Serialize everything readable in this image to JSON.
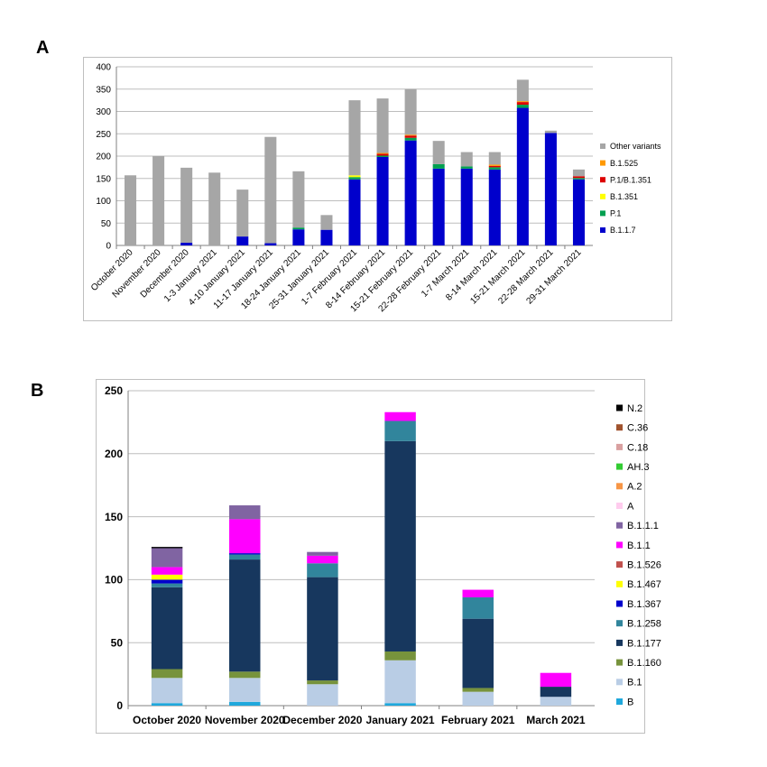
{
  "panels": {
    "a": "A",
    "b": "B"
  },
  "chart_data": [
    {
      "type": "bar",
      "stacked": true,
      "categories": [
        "October 2020",
        "November 2020",
        "December 2020",
        "1-3 January 2021",
        "4-10 January 2021",
        "11-17 January 2021",
        "18-24 January 2021",
        "25-31 January 2021",
        "1-7 February 2021",
        "8-14 February 2021",
        "15-21 February 2021",
        "22-28 February 2021",
        "1-7 March 2021",
        "8-14 March 2021",
        "15-21 March 2021",
        "22-28 March 2021",
        "29-31 March 2021"
      ],
      "ylim": [
        0,
        400
      ],
      "yticks": [
        0,
        50,
        100,
        150,
        200,
        250,
        300,
        350,
        400
      ],
      "grid": true,
      "legend_position": "right",
      "series": [
        {
          "name": "B.1.1.7",
          "color": "#0000cc",
          "values": [
            0,
            0,
            6,
            0,
            20,
            5,
            36,
            35,
            148,
            198,
            235,
            172,
            172,
            170,
            308,
            252,
            148
          ]
        },
        {
          "name": "P.1",
          "color": "#00a050",
          "values": [
            0,
            0,
            0,
            0,
            0,
            0,
            4,
            0,
            5,
            3,
            6,
            10,
            5,
            5,
            7,
            0,
            3
          ]
        },
        {
          "name": "B.1.351",
          "color": "#ffff00",
          "values": [
            0,
            0,
            0,
            0,
            0,
            0,
            0,
            0,
            4,
            0,
            0,
            0,
            0,
            0,
            0,
            0,
            0
          ]
        },
        {
          "name": "P.1/B.1.351",
          "color": "#dd0000",
          "values": [
            0,
            0,
            0,
            0,
            0,
            0,
            0,
            0,
            0,
            4,
            5,
            0,
            0,
            3,
            6,
            0,
            4
          ]
        },
        {
          "name": "B.1.525",
          "color": "#ff9900",
          "values": [
            0,
            0,
            0,
            0,
            0,
            0,
            0,
            0,
            0,
            2,
            2,
            0,
            0,
            3,
            2,
            0,
            0
          ]
        },
        {
          "name": "Other variants",
          "color": "#a6a6a6",
          "values": [
            157,
            200,
            168,
            163,
            105,
            238,
            126,
            33,
            168,
            122,
            102,
            52,
            32,
            28,
            48,
            5,
            15
          ]
        }
      ]
    },
    {
      "type": "bar",
      "stacked": true,
      "categories": [
        "October 2020",
        "November 2020",
        "December 2020",
        "January 2021",
        "February 2021",
        "March 2021"
      ],
      "ylim": [
        0,
        250
      ],
      "yticks": [
        0,
        50,
        100,
        150,
        200,
        250
      ],
      "grid": true,
      "legend_position": "right",
      "series": [
        {
          "name": "B",
          "color": "#1fa8dc",
          "values": [
            2,
            3,
            0,
            2,
            0,
            0
          ]
        },
        {
          "name": "B.1",
          "color": "#b9cde5",
          "values": [
            20,
            19,
            17,
            34,
            11,
            7
          ]
        },
        {
          "name": "B.1.160",
          "color": "#77933c",
          "values": [
            7,
            5,
            3,
            7,
            3,
            0
          ]
        },
        {
          "name": "B.1.177",
          "color": "#17375e",
          "values": [
            65,
            89,
            82,
            167,
            55,
            8
          ]
        },
        {
          "name": "B.1.258",
          "color": "#31859c",
          "values": [
            3,
            4,
            11,
            16,
            17,
            0
          ]
        },
        {
          "name": "B.1.367",
          "color": "#0000cc",
          "values": [
            3,
            1,
            0,
            0,
            0,
            0
          ]
        },
        {
          "name": "B.1.467",
          "color": "#ffff00",
          "values": [
            4,
            0,
            0,
            0,
            0,
            0
          ]
        },
        {
          "name": "B.1.526",
          "color": "#c0504d",
          "values": [
            0,
            0,
            0,
            0,
            0,
            0
          ]
        },
        {
          "name": "B.1.1",
          "color": "#ff00ff",
          "values": [
            6,
            27,
            6,
            7,
            6,
            11
          ]
        },
        {
          "name": "B.1.1.1",
          "color": "#8064a2",
          "values": [
            15,
            11,
            3,
            0,
            0,
            0
          ]
        },
        {
          "name": "A",
          "color": "#ffccee",
          "values": [
            0,
            0,
            0,
            0,
            0,
            0
          ]
        },
        {
          "name": "A.2",
          "color": "#f79646",
          "values": [
            0,
            0,
            0,
            0,
            0,
            0
          ]
        },
        {
          "name": "AH.3",
          "color": "#33cc33",
          "values": [
            0,
            0,
            0,
            0,
            0,
            0
          ]
        },
        {
          "name": "C.18",
          "color": "#d9a0a0",
          "values": [
            0,
            0,
            0,
            0,
            0,
            0
          ]
        },
        {
          "name": "C.36",
          "color": "#a0522d",
          "values": [
            0,
            0,
            0,
            0,
            0,
            0
          ]
        },
        {
          "name": "N.2",
          "color": "#000000",
          "values": [
            1,
            0,
            0,
            0,
            0,
            0
          ]
        }
      ]
    }
  ]
}
